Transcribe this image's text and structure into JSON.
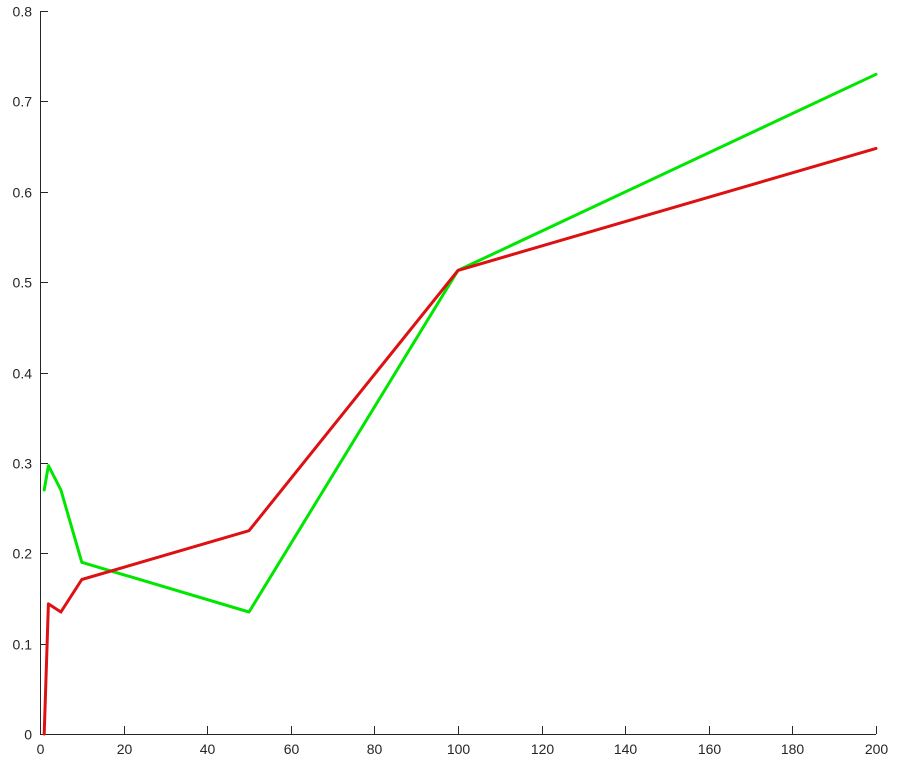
{
  "chart_data": {
    "type": "line",
    "title": "",
    "xlabel": "",
    "ylabel": "",
    "xlim": [
      0,
      200
    ],
    "ylim": [
      0,
      0.8
    ],
    "grid": false,
    "legend": "none",
    "x_ticks": [
      "0",
      "20",
      "40",
      "60",
      "80",
      "100",
      "120",
      "140",
      "160",
      "180",
      "200"
    ],
    "y_ticks": [
      "0",
      "0.1",
      "0.2",
      "0.3",
      "0.4",
      "0.5",
      "0.6",
      "0.7",
      "0.8"
    ],
    "x": [
      1,
      2,
      5,
      10,
      50,
      100,
      200
    ],
    "series": [
      {
        "color": "#00e600",
        "values": [
          0.27,
          0.297,
          0.27,
          0.19,
          0.135,
          0.513,
          0.73
        ]
      },
      {
        "color": "#dd1111",
        "values": [
          0.0,
          0.144,
          0.135,
          0.171,
          0.225,
          0.513,
          0.648
        ]
      }
    ]
  }
}
